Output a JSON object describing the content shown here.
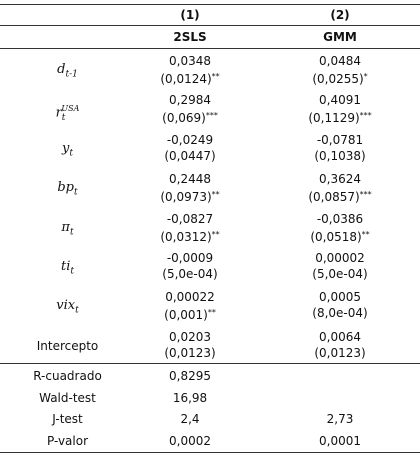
{
  "header": {
    "columns": [
      "(1)",
      "(2)"
    ],
    "methods": [
      "2SLS",
      "GMM"
    ]
  },
  "rows": [
    {
      "var": "d",
      "sub": "t-1",
      "cells": [
        {
          "coef": "0,0348",
          "se": "(0,0124)",
          "stars": "**"
        },
        {
          "coef": "0,0484",
          "se": "(0,0255)",
          "stars": "*"
        }
      ]
    },
    {
      "var": "r",
      "sub": "t",
      "sup": "USA",
      "cells": [
        {
          "coef": "0,2984",
          "se": "(0,069)",
          "stars": "***"
        },
        {
          "coef": "0,4091",
          "se": "(0,1129)",
          "stars": "***"
        }
      ]
    },
    {
      "var": "y",
      "sub": "t",
      "cells": [
        {
          "coef": "-0,0249",
          "se": "(0,0447)"
        },
        {
          "coef": "-0,0781",
          "se": "(0,1038)"
        }
      ]
    },
    {
      "var": "bp",
      "sub": "t",
      "cells": [
        {
          "coef": "0,2448",
          "se": "(0,0973)",
          "stars": "**"
        },
        {
          "coef": "0,3624",
          "se": "(0,0857)",
          "stars": "***"
        }
      ]
    },
    {
      "var": "π",
      "sub": "t",
      "cells": [
        {
          "coef": "-0,0827",
          "se": "(0,0312)",
          "stars": "**"
        },
        {
          "coef": "-0,0386",
          "se": "(0,0518)",
          "stars": "**"
        }
      ]
    },
    {
      "var": "ti",
      "sub": "t",
      "cells": [
        {
          "coef": "-0,0009",
          "se": "(5,0e-04)"
        },
        {
          "coef": "0,00002",
          "se": "(5,0e-04)"
        }
      ]
    },
    {
      "var": "vix",
      "sub": "t",
      "cells": [
        {
          "coef": "0,00022",
          "se": "(0,001)",
          "stars": "**"
        },
        {
          "coef": "0,0005",
          "se": "(8,0e-04)"
        }
      ]
    },
    {
      "var": "Intercepto",
      "cells": [
        {
          "coef": "0,0203",
          "se": "(0,0123)"
        },
        {
          "coef": "0,0064",
          "se": "(0,0123)"
        }
      ]
    }
  ],
  "stats": [
    {
      "label": "R-cuadrado",
      "values": [
        "0,8295"
      ]
    },
    {
      "label": "Wald-test",
      "values": [
        "16,98"
      ]
    },
    {
      "label": "J-test",
      "values": [
        "2,4",
        "2,73"
      ]
    },
    {
      "label": "P-valor",
      "values": [
        "0,0002",
        "0,0001"
      ]
    }
  ]
}
